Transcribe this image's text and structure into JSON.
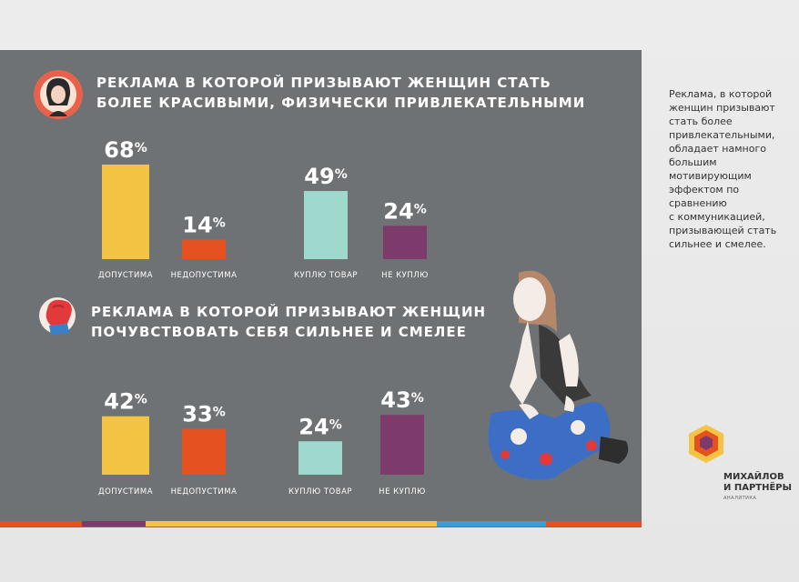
{
  "side_note": "Реклама, в которой\nженщин призывают\nстать более\nпривлекательными,\nобладает намного\nбольшим\nмотивирующим\nэффектом по сравнению\nс коммуникацией,\nпризывающей стать\nсильнее и смелее.",
  "brand": {
    "name": "МИХАЙЛОВ\nИ ПАРТНЁРЫ",
    "sub": "АНАЛИТИКА"
  },
  "colors": {
    "background": "#6e7275",
    "yellow": "#f3c443",
    "orange": "#e5521f",
    "teal": "#9fd8cc",
    "purple": "#7d3b6c"
  },
  "chart_data": [
    {
      "type": "bar",
      "title": "РЕКЛАМА В КОТОРОЙ ПРИЗЫВАЮТ ЖЕНЩИН СТАТЬ БОЛЕЕ КРАСИВЫМИ, ФИЗИЧЕСКИ ПРИВЛЕКАТЕЛЬНЫМИ",
      "title_lines": [
        "РЕКЛАМА В КОТОРОЙ ПРИЗЫВАЮТ ЖЕНЩИН СТАТЬ",
        "БОЛЕЕ КРАСИВЫМИ, ФИЗИЧЕСКИ ПРИВЛЕКАТЕЛЬНЫМИ"
      ],
      "groups": [
        {
          "categories": [
            "ДОПУСТИМА",
            "НЕДОПУСТИМА"
          ],
          "values": [
            68,
            14
          ],
          "labels": [
            "68%",
            "14%"
          ],
          "colors": [
            "#f3c443",
            "#e5521f"
          ]
        },
        {
          "categories": [
            "КУПЛЮ ТОВАР",
            "НЕ КУПЛЮ"
          ],
          "values": [
            49,
            24
          ],
          "labels": [
            "49%",
            "24%"
          ],
          "colors": [
            "#9fd8cc",
            "#7d3b6c"
          ]
        }
      ],
      "unit": "%",
      "ylim": [
        0,
        100
      ]
    },
    {
      "type": "bar",
      "title": "РЕКЛАМА В КОТОРОЙ ПРИЗЫВАЮТ ЖЕНЩИН ПОЧУВСТВОВАТЬ СЕБЯ СИЛЬНЕЕ И СМЕЛЕЕ",
      "title_lines": [
        "РЕКЛАМА В КОТОРОЙ ПРИЗЫВАЮТ ЖЕНЩИН",
        "ПОЧУВСТВОВАТЬ СЕБЯ СИЛЬНЕЕ И СМЕЛЕЕ"
      ],
      "groups": [
        {
          "categories": [
            "ДОПУСТИМА",
            "НЕДОПУСТИМА"
          ],
          "values": [
            42,
            33
          ],
          "labels": [
            "42%",
            "33%"
          ],
          "colors": [
            "#f3c443",
            "#e5521f"
          ]
        },
        {
          "categories": [
            "КУПЛЮ ТОВАР",
            "НЕ КУПЛЮ"
          ],
          "values": [
            24,
            43
          ],
          "labels": [
            "24%",
            "43%"
          ],
          "colors": [
            "#9fd8cc",
            "#7d3b6c"
          ]
        }
      ],
      "unit": "%",
      "ylim": [
        0,
        100
      ]
    }
  ]
}
